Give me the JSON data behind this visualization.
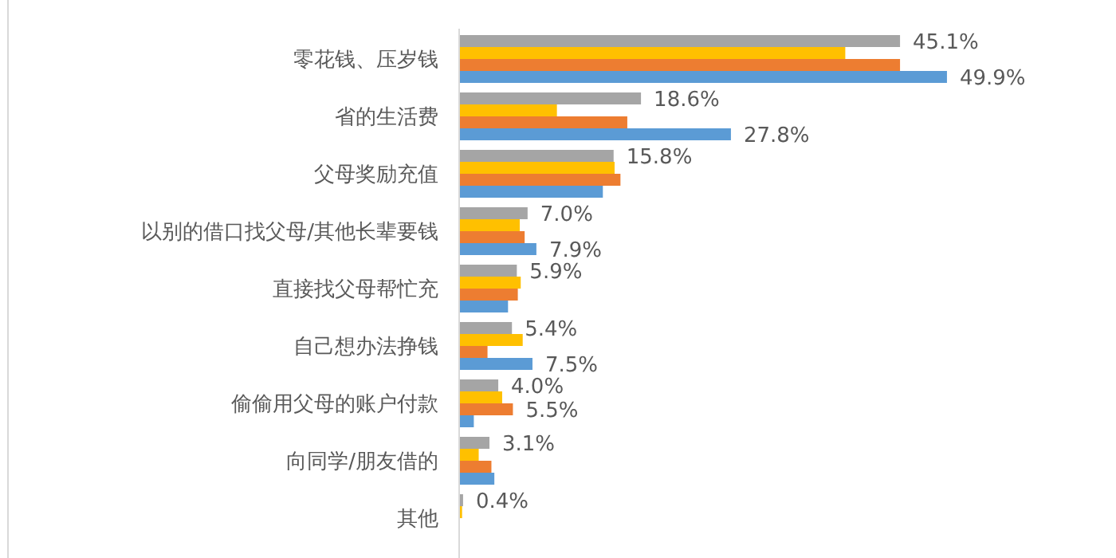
{
  "chart_data": {
    "type": "bar",
    "orientation": "horizontal",
    "categories": [
      "零花钱、压岁钱",
      "省的生活费",
      "父母奖励充值",
      "以别的借口找父母/其他长辈要钱",
      "直接找父母帮忙充",
      "自己想办法挣钱",
      "偷偷用父母的账户付款",
      "向同学/朋友借的",
      "其他"
    ],
    "series": [
      {
        "color": "#a5a5a5",
        "values": [
          45.1,
          18.6,
          15.8,
          7.0,
          5.9,
          5.4,
          4.0,
          3.1,
          0.4
        ],
        "value_labels": [
          "45.1%",
          "18.6%",
          "15.8%",
          "7.0%",
          "5.9%",
          "5.4%",
          "4.0%",
          "3.1%",
          "0.4%"
        ]
      },
      {
        "color": "#ffc000",
        "values": [
          39.5,
          10.0,
          15.9,
          6.2,
          6.3,
          6.5,
          4.4,
          2.0,
          0.3
        ]
      },
      {
        "color": "#ed7d31",
        "values": [
          45.1,
          17.2,
          16.5,
          6.7,
          6.0,
          2.9,
          5.5,
          3.3,
          null
        ],
        "value_labels": [
          null,
          null,
          null,
          null,
          null,
          null,
          "5.5%",
          null,
          null
        ]
      },
      {
        "color": "#5b9bd5",
        "values": [
          49.9,
          27.8,
          14.7,
          7.9,
          5.0,
          7.5,
          1.5,
          3.6,
          null
        ],
        "value_labels": [
          "49.9%",
          "27.8%",
          null,
          "7.9%",
          null,
          "7.5%",
          null,
          null,
          null
        ]
      }
    ]
  }
}
